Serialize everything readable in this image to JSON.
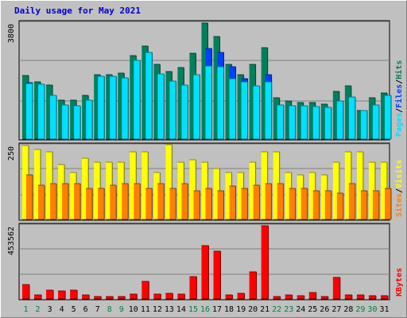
{
  "title": "Daily usage for May 2021",
  "colors": {
    "background": "#C0C0C0",
    "hits": "#00805C",
    "files": "#0040FF",
    "pages": "#00E0FF",
    "visits": "#FFFF00",
    "sites": "#FF8000",
    "kbytes": "#FF0000",
    "day_weekday": "#000000",
    "day_weekend": "#008040"
  },
  "chart_data": [
    {
      "type": "bar",
      "panel": "top",
      "ytick": "3800",
      "ylim": [
        0,
        3800
      ],
      "grid": true,
      "legend_position": "right-vertical",
      "legend": [
        "Pages",
        "Files",
        "Hits"
      ],
      "categories": [
        "1",
        "2",
        "3",
        "4",
        "5",
        "6",
        "7",
        "8",
        "9",
        "10",
        "11",
        "12",
        "13",
        "14",
        "15",
        "16",
        "17",
        "18",
        "19",
        "20",
        "21",
        "22",
        "23",
        "24",
        "25",
        "26",
        "27",
        "28",
        "29",
        "30",
        "31"
      ],
      "series": [
        {
          "name": "Hits",
          "values": [
            2070,
            1870,
            1780,
            1280,
            1280,
            1420,
            2100,
            2100,
            2150,
            2720,
            3050,
            2450,
            2220,
            2340,
            2820,
            3800,
            3360,
            2450,
            2120,
            2450,
            3000,
            1350,
            1250,
            1210,
            1210,
            1140,
            1560,
            1740,
            940,
            1350,
            1500
          ]
        },
        {
          "name": "Files",
          "values": [
            1850,
            1800,
            1430,
            1120,
            1080,
            1270,
            2060,
            2050,
            2000,
            2560,
            2840,
            2120,
            1900,
            1780,
            2120,
            2970,
            2830,
            2370,
            1970,
            1720,
            2120,
            1130,
            1090,
            1090,
            1070,
            1030,
            1240,
            1390,
            940,
            1130,
            1430
          ]
        },
        {
          "name": "Pages",
          "values": [
            1830,
            1800,
            1430,
            1120,
            1090,
            1270,
            2060,
            2050,
            2000,
            2570,
            2840,
            2130,
            1900,
            1780,
            2120,
            2400,
            2360,
            1980,
            1880,
            1750,
            1880,
            1130,
            1090,
            1090,
            1070,
            1030,
            1240,
            1390,
            940,
            1130,
            1430
          ]
        }
      ]
    },
    {
      "type": "bar",
      "panel": "middle",
      "ytick": "250",
      "ylim": [
        0,
        250
      ],
      "grid": true,
      "legend_position": "right-vertical",
      "legend": [
        "Sites",
        "Visits"
      ],
      "categories": [
        "1",
        "2",
        "3",
        "4",
        "5",
        "6",
        "7",
        "8",
        "9",
        "10",
        "11",
        "12",
        "13",
        "14",
        "15",
        "16",
        "17",
        "18",
        "19",
        "20",
        "21",
        "22",
        "23",
        "24",
        "25",
        "26",
        "27",
        "28",
        "29",
        "30",
        "31"
      ],
      "series": [
        {
          "name": "Visits",
          "values": [
            250,
            237,
            228,
            185,
            159,
            208,
            193,
            193,
            193,
            228,
            228,
            159,
            254,
            193,
            202,
            193,
            172,
            159,
            159,
            193,
            228,
            228,
            159,
            150,
            159,
            150,
            193,
            228,
            228,
            193,
            193
          ]
        },
        {
          "name": "Sites",
          "values": [
            150,
            115,
            121,
            121,
            121,
            106,
            106,
            115,
            121,
            121,
            106,
            121,
            106,
            121,
            97,
            106,
            97,
            113,
            106,
            115,
            121,
            121,
            106,
            106,
            97,
            98,
            88,
            121,
            97,
            97,
            106
          ]
        }
      ]
    },
    {
      "type": "bar",
      "panel": "bottom",
      "ytick": "453562",
      "ylim": [
        0,
        453562
      ],
      "grid": true,
      "legend_position": "right-vertical",
      "legend": [
        "KBytes"
      ],
      "categories": [
        "1",
        "2",
        "3",
        "4",
        "5",
        "6",
        "7",
        "8",
        "9",
        "10",
        "11",
        "12",
        "13",
        "14",
        "15",
        "16",
        "17",
        "18",
        "19",
        "20",
        "21",
        "22",
        "23",
        "24",
        "25",
        "26",
        "27",
        "28",
        "29",
        "30",
        "31"
      ],
      "series": [
        {
          "name": "KBytes",
          "values": [
            91000,
            23000,
            56000,
            47000,
            56000,
            24000,
            17000,
            14000,
            17000,
            28000,
            108000,
            31000,
            35000,
            32000,
            138000,
            331000,
            297000,
            25000,
            36000,
            169000,
            453562,
            17000,
            23000,
            18000,
            37000,
            17000,
            132000,
            25000,
            24000,
            22000,
            19000
          ]
        }
      ]
    }
  ]
}
